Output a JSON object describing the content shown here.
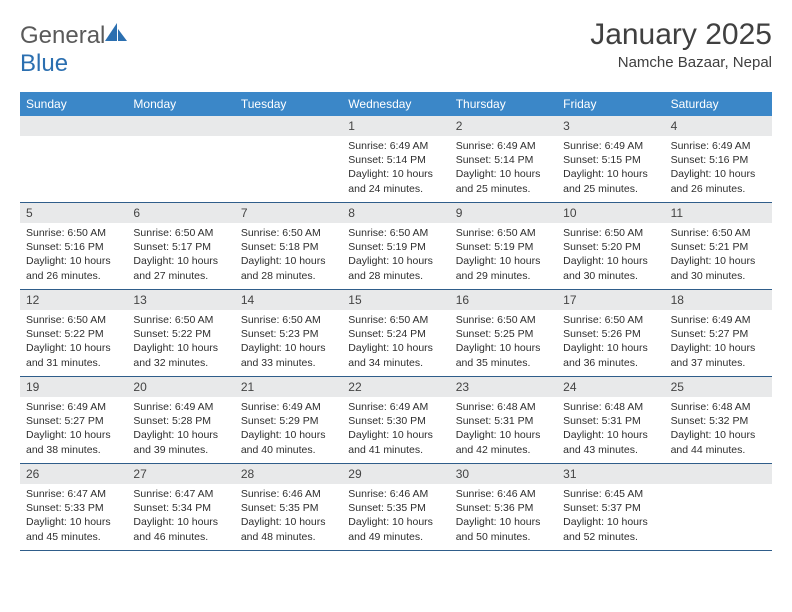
{
  "logo": {
    "word1": "General",
    "word2": "Blue",
    "text_color": "#5a5a5a",
    "accent_color": "#2b6fb0"
  },
  "title": "January 2025",
  "location": "Namche Bazaar, Nepal",
  "colors": {
    "header_bg": "#3b87c8",
    "header_text": "#ffffff",
    "daynum_bg": "#e8e9ea",
    "week_border": "#2f5d8a",
    "body_text": "#2e2e2e"
  },
  "weekdays": [
    "Sunday",
    "Monday",
    "Tuesday",
    "Wednesday",
    "Thursday",
    "Friday",
    "Saturday"
  ],
  "weeks": [
    [
      null,
      null,
      null,
      {
        "n": "1",
        "sr": "Sunrise: 6:49 AM",
        "ss": "Sunset: 5:14 PM",
        "d1": "Daylight: 10 hours",
        "d2": "and 24 minutes."
      },
      {
        "n": "2",
        "sr": "Sunrise: 6:49 AM",
        "ss": "Sunset: 5:14 PM",
        "d1": "Daylight: 10 hours",
        "d2": "and 25 minutes."
      },
      {
        "n": "3",
        "sr": "Sunrise: 6:49 AM",
        "ss": "Sunset: 5:15 PM",
        "d1": "Daylight: 10 hours",
        "d2": "and 25 minutes."
      },
      {
        "n": "4",
        "sr": "Sunrise: 6:49 AM",
        "ss": "Sunset: 5:16 PM",
        "d1": "Daylight: 10 hours",
        "d2": "and 26 minutes."
      }
    ],
    [
      {
        "n": "5",
        "sr": "Sunrise: 6:50 AM",
        "ss": "Sunset: 5:16 PM",
        "d1": "Daylight: 10 hours",
        "d2": "and 26 minutes."
      },
      {
        "n": "6",
        "sr": "Sunrise: 6:50 AM",
        "ss": "Sunset: 5:17 PM",
        "d1": "Daylight: 10 hours",
        "d2": "and 27 minutes."
      },
      {
        "n": "7",
        "sr": "Sunrise: 6:50 AM",
        "ss": "Sunset: 5:18 PM",
        "d1": "Daylight: 10 hours",
        "d2": "and 28 minutes."
      },
      {
        "n": "8",
        "sr": "Sunrise: 6:50 AM",
        "ss": "Sunset: 5:19 PM",
        "d1": "Daylight: 10 hours",
        "d2": "and 28 minutes."
      },
      {
        "n": "9",
        "sr": "Sunrise: 6:50 AM",
        "ss": "Sunset: 5:19 PM",
        "d1": "Daylight: 10 hours",
        "d2": "and 29 minutes."
      },
      {
        "n": "10",
        "sr": "Sunrise: 6:50 AM",
        "ss": "Sunset: 5:20 PM",
        "d1": "Daylight: 10 hours",
        "d2": "and 30 minutes."
      },
      {
        "n": "11",
        "sr": "Sunrise: 6:50 AM",
        "ss": "Sunset: 5:21 PM",
        "d1": "Daylight: 10 hours",
        "d2": "and 30 minutes."
      }
    ],
    [
      {
        "n": "12",
        "sr": "Sunrise: 6:50 AM",
        "ss": "Sunset: 5:22 PM",
        "d1": "Daylight: 10 hours",
        "d2": "and 31 minutes."
      },
      {
        "n": "13",
        "sr": "Sunrise: 6:50 AM",
        "ss": "Sunset: 5:22 PM",
        "d1": "Daylight: 10 hours",
        "d2": "and 32 minutes."
      },
      {
        "n": "14",
        "sr": "Sunrise: 6:50 AM",
        "ss": "Sunset: 5:23 PM",
        "d1": "Daylight: 10 hours",
        "d2": "and 33 minutes."
      },
      {
        "n": "15",
        "sr": "Sunrise: 6:50 AM",
        "ss": "Sunset: 5:24 PM",
        "d1": "Daylight: 10 hours",
        "d2": "and 34 minutes."
      },
      {
        "n": "16",
        "sr": "Sunrise: 6:50 AM",
        "ss": "Sunset: 5:25 PM",
        "d1": "Daylight: 10 hours",
        "d2": "and 35 minutes."
      },
      {
        "n": "17",
        "sr": "Sunrise: 6:50 AM",
        "ss": "Sunset: 5:26 PM",
        "d1": "Daylight: 10 hours",
        "d2": "and 36 minutes."
      },
      {
        "n": "18",
        "sr": "Sunrise: 6:49 AM",
        "ss": "Sunset: 5:27 PM",
        "d1": "Daylight: 10 hours",
        "d2": "and 37 minutes."
      }
    ],
    [
      {
        "n": "19",
        "sr": "Sunrise: 6:49 AM",
        "ss": "Sunset: 5:27 PM",
        "d1": "Daylight: 10 hours",
        "d2": "and 38 minutes."
      },
      {
        "n": "20",
        "sr": "Sunrise: 6:49 AM",
        "ss": "Sunset: 5:28 PM",
        "d1": "Daylight: 10 hours",
        "d2": "and 39 minutes."
      },
      {
        "n": "21",
        "sr": "Sunrise: 6:49 AM",
        "ss": "Sunset: 5:29 PM",
        "d1": "Daylight: 10 hours",
        "d2": "and 40 minutes."
      },
      {
        "n": "22",
        "sr": "Sunrise: 6:49 AM",
        "ss": "Sunset: 5:30 PM",
        "d1": "Daylight: 10 hours",
        "d2": "and 41 minutes."
      },
      {
        "n": "23",
        "sr": "Sunrise: 6:48 AM",
        "ss": "Sunset: 5:31 PM",
        "d1": "Daylight: 10 hours",
        "d2": "and 42 minutes."
      },
      {
        "n": "24",
        "sr": "Sunrise: 6:48 AM",
        "ss": "Sunset: 5:31 PM",
        "d1": "Daylight: 10 hours",
        "d2": "and 43 minutes."
      },
      {
        "n": "25",
        "sr": "Sunrise: 6:48 AM",
        "ss": "Sunset: 5:32 PM",
        "d1": "Daylight: 10 hours",
        "d2": "and 44 minutes."
      }
    ],
    [
      {
        "n": "26",
        "sr": "Sunrise: 6:47 AM",
        "ss": "Sunset: 5:33 PM",
        "d1": "Daylight: 10 hours",
        "d2": "and 45 minutes."
      },
      {
        "n": "27",
        "sr": "Sunrise: 6:47 AM",
        "ss": "Sunset: 5:34 PM",
        "d1": "Daylight: 10 hours",
        "d2": "and 46 minutes."
      },
      {
        "n": "28",
        "sr": "Sunrise: 6:46 AM",
        "ss": "Sunset: 5:35 PM",
        "d1": "Daylight: 10 hours",
        "d2": "and 48 minutes."
      },
      {
        "n": "29",
        "sr": "Sunrise: 6:46 AM",
        "ss": "Sunset: 5:35 PM",
        "d1": "Daylight: 10 hours",
        "d2": "and 49 minutes."
      },
      {
        "n": "30",
        "sr": "Sunrise: 6:46 AM",
        "ss": "Sunset: 5:36 PM",
        "d1": "Daylight: 10 hours",
        "d2": "and 50 minutes."
      },
      {
        "n": "31",
        "sr": "Sunrise: 6:45 AM",
        "ss": "Sunset: 5:37 PM",
        "d1": "Daylight: 10 hours",
        "d2": "and 52 minutes."
      },
      null
    ]
  ]
}
